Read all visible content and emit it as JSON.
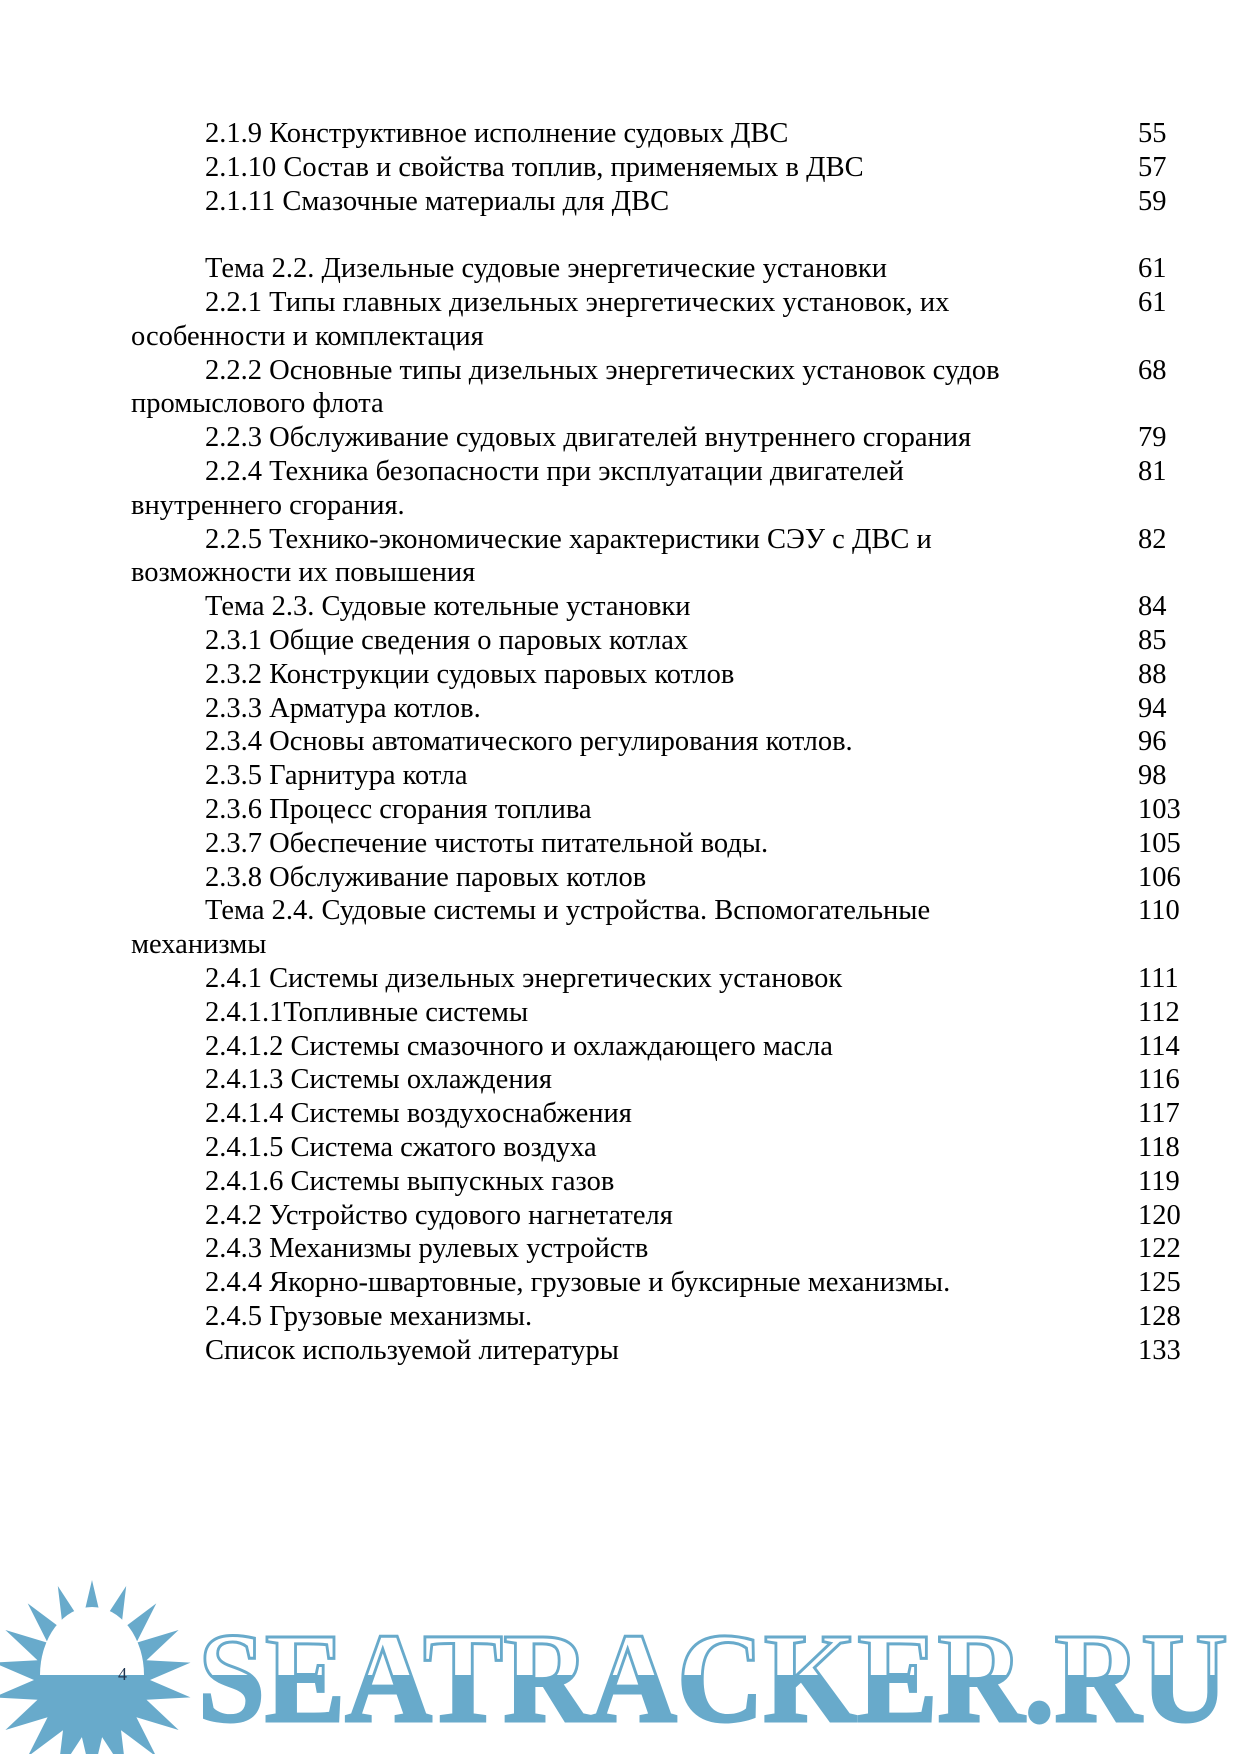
{
  "toc": [
    {
      "title": "2.1.9 Конструктивное исполнение судовых ДВС",
      "page": "55"
    },
    {
      "title": "2.1.10 Состав и свойства топлив, применяемых в ДВС",
      "page": "57"
    },
    {
      "title": "2.1.11 Смазочные материалы для ДВС",
      "page": "59"
    },
    {
      "spacer": true
    },
    {
      "title": "Тема 2.2. Дизельные судовые энергетические установки",
      "page": "61"
    },
    {
      "title": "2.2.1 Типы главных дизельных энергетических установок, их",
      "cont": "особенности и комплектация",
      "page": "61"
    },
    {
      "title": "2.2.2 Основные типы дизельных энергетических установок судов",
      "cont": "промыслового флота",
      "page": "68"
    },
    {
      "title": "2.2.3 Обслуживание судовых двигателей внутреннего сгорания",
      "page": "79"
    },
    {
      "title": "2.2.4 Техника безопасности при эксплуатации двигателей",
      "cont": "внутреннего сгорания.",
      "page": "81"
    },
    {
      "title": "2.2.5 Технико-экономические характеристики СЭУ с ДВС и",
      "cont": "возможности их повышения",
      "page": "82"
    },
    {
      "title": "Тема 2.3. Судовые котельные установки",
      "page": "84"
    },
    {
      "title": "2.3.1 Общие сведения о паровых котлах",
      "page": "85"
    },
    {
      "title": "2.3.2 Конструкции судовых паровых котлов",
      "page": "88"
    },
    {
      "title": "2.3.3 Арматура котлов.",
      "page": "94"
    },
    {
      "title": "2.3.4 Основы автоматического регулирования котлов.",
      "page": "96"
    },
    {
      "title": "2.3.5 Гарнитура котла",
      "page": "98"
    },
    {
      "title": "2.3.6 Процесс сгорания топлива",
      "page": "103"
    },
    {
      "title": "2.3.7 Обеспечение чистоты питательной воды.",
      "page": "105"
    },
    {
      "title": "2.3.8 Обслуживание паровых котлов",
      "page": "106"
    },
    {
      "title": "Тема 2.4. Судовые системы и устройства. Вспомогательные",
      "cont": "механизмы",
      "page": "110"
    },
    {
      "title": "2.4.1 Системы дизельных энергетических установок",
      "page": "111"
    },
    {
      "title": "2.4.1.1Топливные системы",
      "page": "112"
    },
    {
      "title": "2.4.1.2 Системы смазочного и охлаждающего масла",
      "page": "114"
    },
    {
      "title": "2.4.1.3 Системы охлаждения",
      "page": "116"
    },
    {
      "title": "2.4.1.4 Системы воздухоснабжения",
      "page": "117"
    },
    {
      "title": "2.4.1.5 Система сжатого воздуха",
      "page": "118"
    },
    {
      "title": "2.4.1.6 Системы выпускных газов",
      "page": "119"
    },
    {
      "title": "2.4.2 Устройство судового нагнетателя",
      "page": "120"
    },
    {
      "title": "2.4.3 Механизмы рулевых устройств",
      "page": "122"
    },
    {
      "title": "2.4.4 Якорно-швартовные, грузовые и буксирные механизмы.",
      "page": "125"
    },
    {
      "title": "2.4.5 Грузовые механизмы.",
      "page": "128"
    },
    {
      "title": "Список используемой литературы",
      "page": "133"
    }
  ],
  "page_number": "4",
  "watermark": {
    "text": "SEATRACKER.RU",
    "icon": "sun-icon",
    "color": "#68aacb"
  }
}
